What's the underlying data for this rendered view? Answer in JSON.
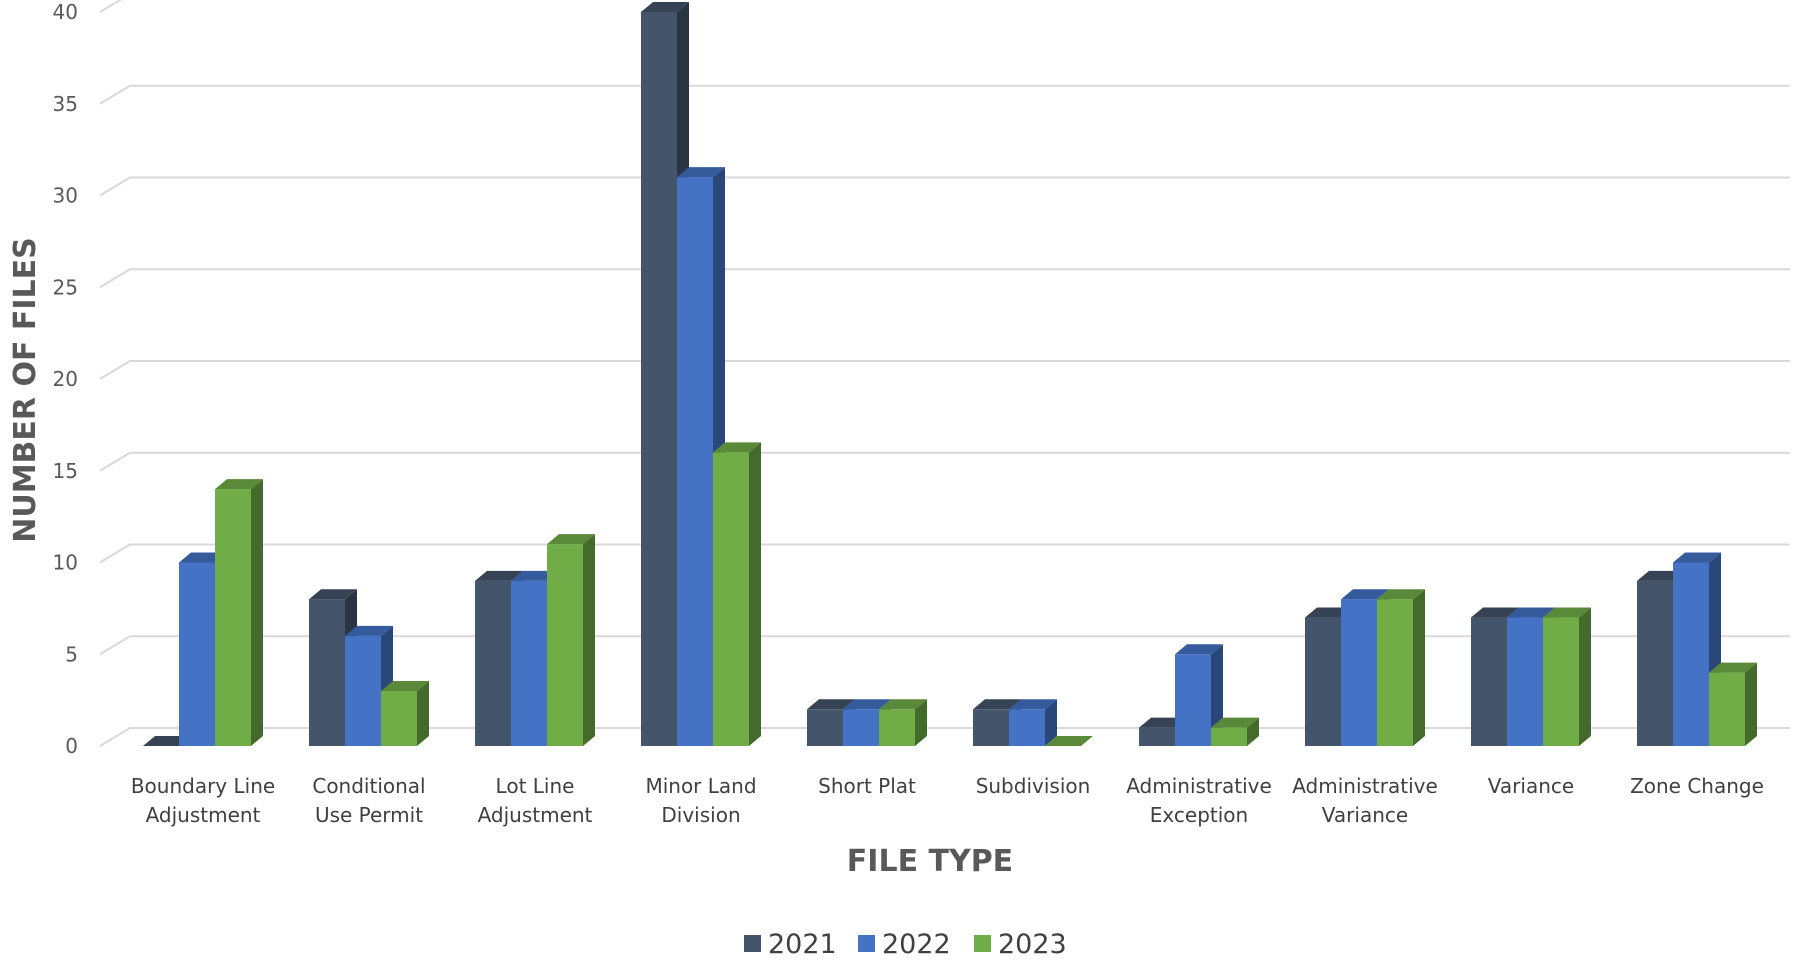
{
  "chart_data": {
    "type": "bar",
    "style": "3d-clustered-column",
    "categories": [
      [
        "Boundary Line",
        "Adjustment"
      ],
      [
        "Conditional",
        "Use Permit"
      ],
      [
        "Lot Line",
        "Adjustment"
      ],
      [
        "Minor Land",
        "Division"
      ],
      [
        "Short Plat"
      ],
      [
        "Subdivision"
      ],
      [
        "Administrative",
        "Exception"
      ],
      [
        "Administrative",
        "Variance"
      ],
      [
        "Variance"
      ],
      [
        "Zone Change"
      ]
    ],
    "series": [
      {
        "name": "2021",
        "color": "#44546A",
        "values": [
          0,
          8,
          9,
          40,
          2,
          2,
          1,
          7,
          7,
          9
        ]
      },
      {
        "name": "2022",
        "color": "#4472C4",
        "values": [
          10,
          6,
          9,
          31,
          2,
          2,
          5,
          8,
          7,
          10
        ]
      },
      {
        "name": "2023",
        "color": "#70AD47",
        "values": [
          14,
          3,
          11,
          16,
          2,
          0,
          1,
          8,
          7,
          4
        ]
      }
    ],
    "xlabel": "FILE TYPE",
    "ylabel": "NUMBER OF FILES",
    "ylim": [
      0,
      40
    ],
    "yticks": [
      0,
      5,
      10,
      15,
      20,
      25,
      30,
      35,
      40
    ],
    "grid": true,
    "legend_position": "bottom"
  }
}
